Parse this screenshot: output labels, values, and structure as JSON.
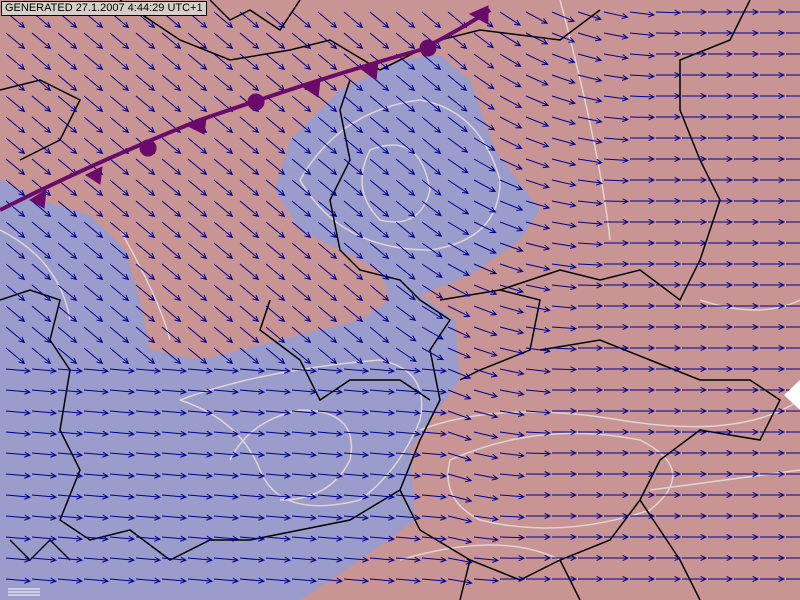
{
  "stamp": {
    "text": "GENERATED 27.1.2007 4:44:29 UTC+1"
  },
  "colors": {
    "warm": "#c89494",
    "cold": "#9a9ccc",
    "arrows": "#00008a",
    "front": "#6a0a6a",
    "isolines": "#e0d4d4",
    "borders": "#000000"
  },
  "layers": {
    "wind_arrows": true,
    "temperature_isolines": true,
    "country_borders": true,
    "fronts": [
      "warm-front"
    ]
  }
}
